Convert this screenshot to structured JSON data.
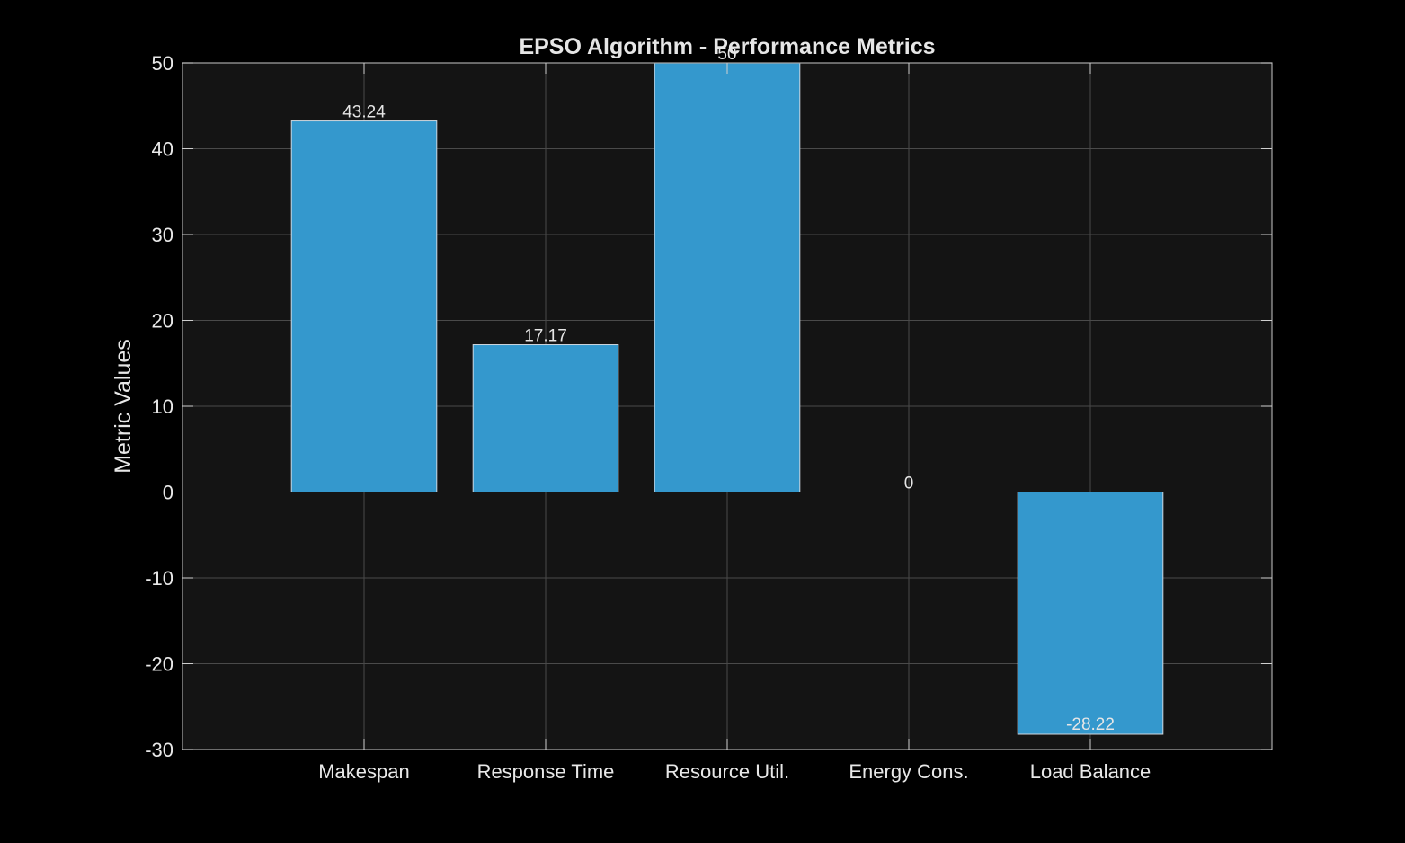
{
  "chart_data": {
    "type": "bar",
    "title": "EPSO Algorithm - Performance Metrics",
    "xlabel": "",
    "ylabel": "Metric Values",
    "categories": [
      "Makespan",
      "Response Time",
      "Resource Util.",
      "Energy Cons.",
      "Load Balance"
    ],
    "values": [
      43.24,
      17.17,
      50,
      0,
      -28.22
    ],
    "data_labels": [
      "43.24",
      "17.17",
      "50",
      "0",
      "-28.22"
    ],
    "ylim": [
      -30,
      50
    ],
    "yticks": [
      -30,
      -20,
      -10,
      0,
      10,
      20,
      30,
      40,
      50
    ],
    "grid": true,
    "legend": "none",
    "colors": {
      "background": "#000000",
      "plot_area": "#141414",
      "bar_fill": "#3498cd",
      "bar_edge": "#cfd8e0",
      "grid": "#4a4a4a",
      "text": "#e8e8e8"
    }
  }
}
